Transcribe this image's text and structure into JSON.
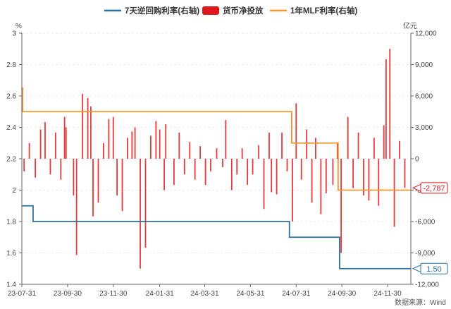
{
  "source": "数据来源：Wind",
  "colors": {
    "repo": "#2b6f9e",
    "liquidity": "#e0171b",
    "mlf": "#f0962f",
    "axis": "#666666"
  },
  "chart_data": {
    "type": "bar+line",
    "legend": [
      "7天逆回购利率(右轴)",
      "货币净投放",
      "1年MLF利率(右轴)"
    ],
    "left_axis": {
      "unit": "%",
      "range": [
        1.4,
        3.0
      ],
      "ticks": [
        "1.4",
        "1.6",
        "1.8",
        "2",
        "2.2",
        "2.4",
        "2.6",
        "2.8",
        "3"
      ]
    },
    "right_axis": {
      "unit": "亿元",
      "range": [
        -12000,
        12000
      ],
      "ticks": [
        "-12,000",
        "-9,000",
        "-6,000",
        "-3,000",
        "0",
        "3,000",
        "6,000",
        "9,000",
        "12,000"
      ]
    },
    "x_ticks": [
      "23-07-31",
      "23-09-30",
      "23-11-30",
      "24-01-31",
      "24-03-31",
      "24-05-31",
      "24-07-31",
      "24-09-30",
      "24-11-30"
    ],
    "x_range": [
      "2023-07-31",
      "2024-12-31"
    ],
    "series": [
      {
        "name": "7天逆回购利率(右轴)",
        "axis": "left",
        "type": "step",
        "points": [
          [
            "2023-07-31",
            1.9
          ],
          [
            "2023-08-15",
            1.8
          ],
          [
            "2024-07-22",
            1.7
          ],
          [
            "2024-09-27",
            1.5
          ],
          [
            "2024-12-31",
            1.5
          ]
        ]
      },
      {
        "name": "1年MLF利率(右轴)",
        "axis": "left",
        "type": "step",
        "points": [
          [
            "2023-07-31",
            2.65
          ],
          [
            "2023-08-01",
            2.5
          ],
          [
            "2024-07-25",
            2.3
          ],
          [
            "2024-09-25",
            2.0
          ],
          [
            "2024-12-31",
            2.0
          ]
        ]
      },
      {
        "name": "货币净投放",
        "axis": "right",
        "type": "bar",
        "bars": [
          [
            "2023-08-03",
            -1200
          ],
          [
            "2023-08-10",
            1500
          ],
          [
            "2023-08-18",
            -1800
          ],
          [
            "2023-08-25",
            2800
          ],
          [
            "2023-08-31",
            3500
          ],
          [
            "2023-09-07",
            -1500
          ],
          [
            "2023-09-14",
            2500
          ],
          [
            "2023-09-21",
            -2000
          ],
          [
            "2023-09-26",
            4000
          ],
          [
            "2023-09-28",
            3000
          ],
          [
            "2023-10-08",
            -3500
          ],
          [
            "2023-10-12",
            -9200
          ],
          [
            "2023-10-20",
            6200
          ],
          [
            "2023-10-27",
            5800
          ],
          [
            "2023-10-31",
            5000
          ],
          [
            "2023-11-03",
            -5500
          ],
          [
            "2023-11-10",
            -4200
          ],
          [
            "2023-11-17",
            1500
          ],
          [
            "2023-11-24",
            3800
          ],
          [
            "2023-11-30",
            4000
          ],
          [
            "2023-12-05",
            -3500
          ],
          [
            "2023-12-12",
            -5000
          ],
          [
            "2023-12-19",
            2000
          ],
          [
            "2023-12-25",
            2600
          ],
          [
            "2023-12-29",
            3000
          ],
          [
            "2024-01-05",
            -10500
          ],
          [
            "2024-01-12",
            -8500
          ],
          [
            "2024-01-19",
            2200
          ],
          [
            "2024-01-26",
            3600
          ],
          [
            "2024-01-31",
            2800
          ],
          [
            "2024-02-06",
            -3000
          ],
          [
            "2024-02-08",
            3300
          ],
          [
            "2024-02-19",
            -2500
          ],
          [
            "2024-02-26",
            2500
          ],
          [
            "2024-03-04",
            -1500
          ],
          [
            "2024-03-11",
            1600
          ],
          [
            "2024-03-18",
            -2000
          ],
          [
            "2024-03-25",
            1200
          ],
          [
            "2024-04-01",
            -2500
          ],
          [
            "2024-04-08",
            -1200
          ],
          [
            "2024-04-16",
            1000
          ],
          [
            "2024-04-24",
            -800
          ],
          [
            "2024-04-28",
            3700
          ],
          [
            "2024-05-06",
            -3000
          ],
          [
            "2024-05-13",
            -1500
          ],
          [
            "2024-05-20",
            1000
          ],
          [
            "2024-05-27",
            -2500
          ],
          [
            "2024-06-03",
            -1500
          ],
          [
            "2024-06-11",
            1300
          ],
          [
            "2024-06-18",
            -4800
          ],
          [
            "2024-06-25",
            2500
          ],
          [
            "2024-06-28",
            -3200
          ],
          [
            "2024-07-05",
            -3400
          ],
          [
            "2024-07-12",
            2500
          ],
          [
            "2024-07-19",
            -1200
          ],
          [
            "2024-07-26",
            -6000
          ],
          [
            "2024-07-31",
            5300
          ],
          [
            "2024-08-07",
            -2000
          ],
          [
            "2024-08-14",
            2800
          ],
          [
            "2024-08-21",
            -4200
          ],
          [
            "2024-08-26",
            2000
          ],
          [
            "2024-09-02",
            -5300
          ],
          [
            "2024-09-09",
            -3300
          ],
          [
            "2024-09-18",
            -2500
          ],
          [
            "2024-09-24",
            1500
          ],
          [
            "2024-09-29",
            -9000
          ],
          [
            "2024-10-08",
            4000
          ],
          [
            "2024-10-15",
            -2800
          ],
          [
            "2024-10-22",
            2500
          ],
          [
            "2024-10-29",
            -3500
          ],
          [
            "2024-11-05",
            -4000
          ],
          [
            "2024-11-12",
            2000
          ],
          [
            "2024-11-18",
            -4500
          ],
          [
            "2024-11-25",
            3200
          ],
          [
            "2024-11-28",
            9500
          ],
          [
            "2024-12-03",
            10500
          ],
          [
            "2024-12-09",
            -6500
          ],
          [
            "2024-12-16",
            1700
          ],
          [
            "2024-12-23",
            -2787
          ]
        ]
      }
    ],
    "callouts": [
      {
        "series": "货币净投放",
        "value": "-2,787",
        "axis": "right",
        "at": -2787
      },
      {
        "series": "7天逆回购利率(右轴)",
        "value": "1.50",
        "axis": "left",
        "at": 1.5
      }
    ]
  }
}
